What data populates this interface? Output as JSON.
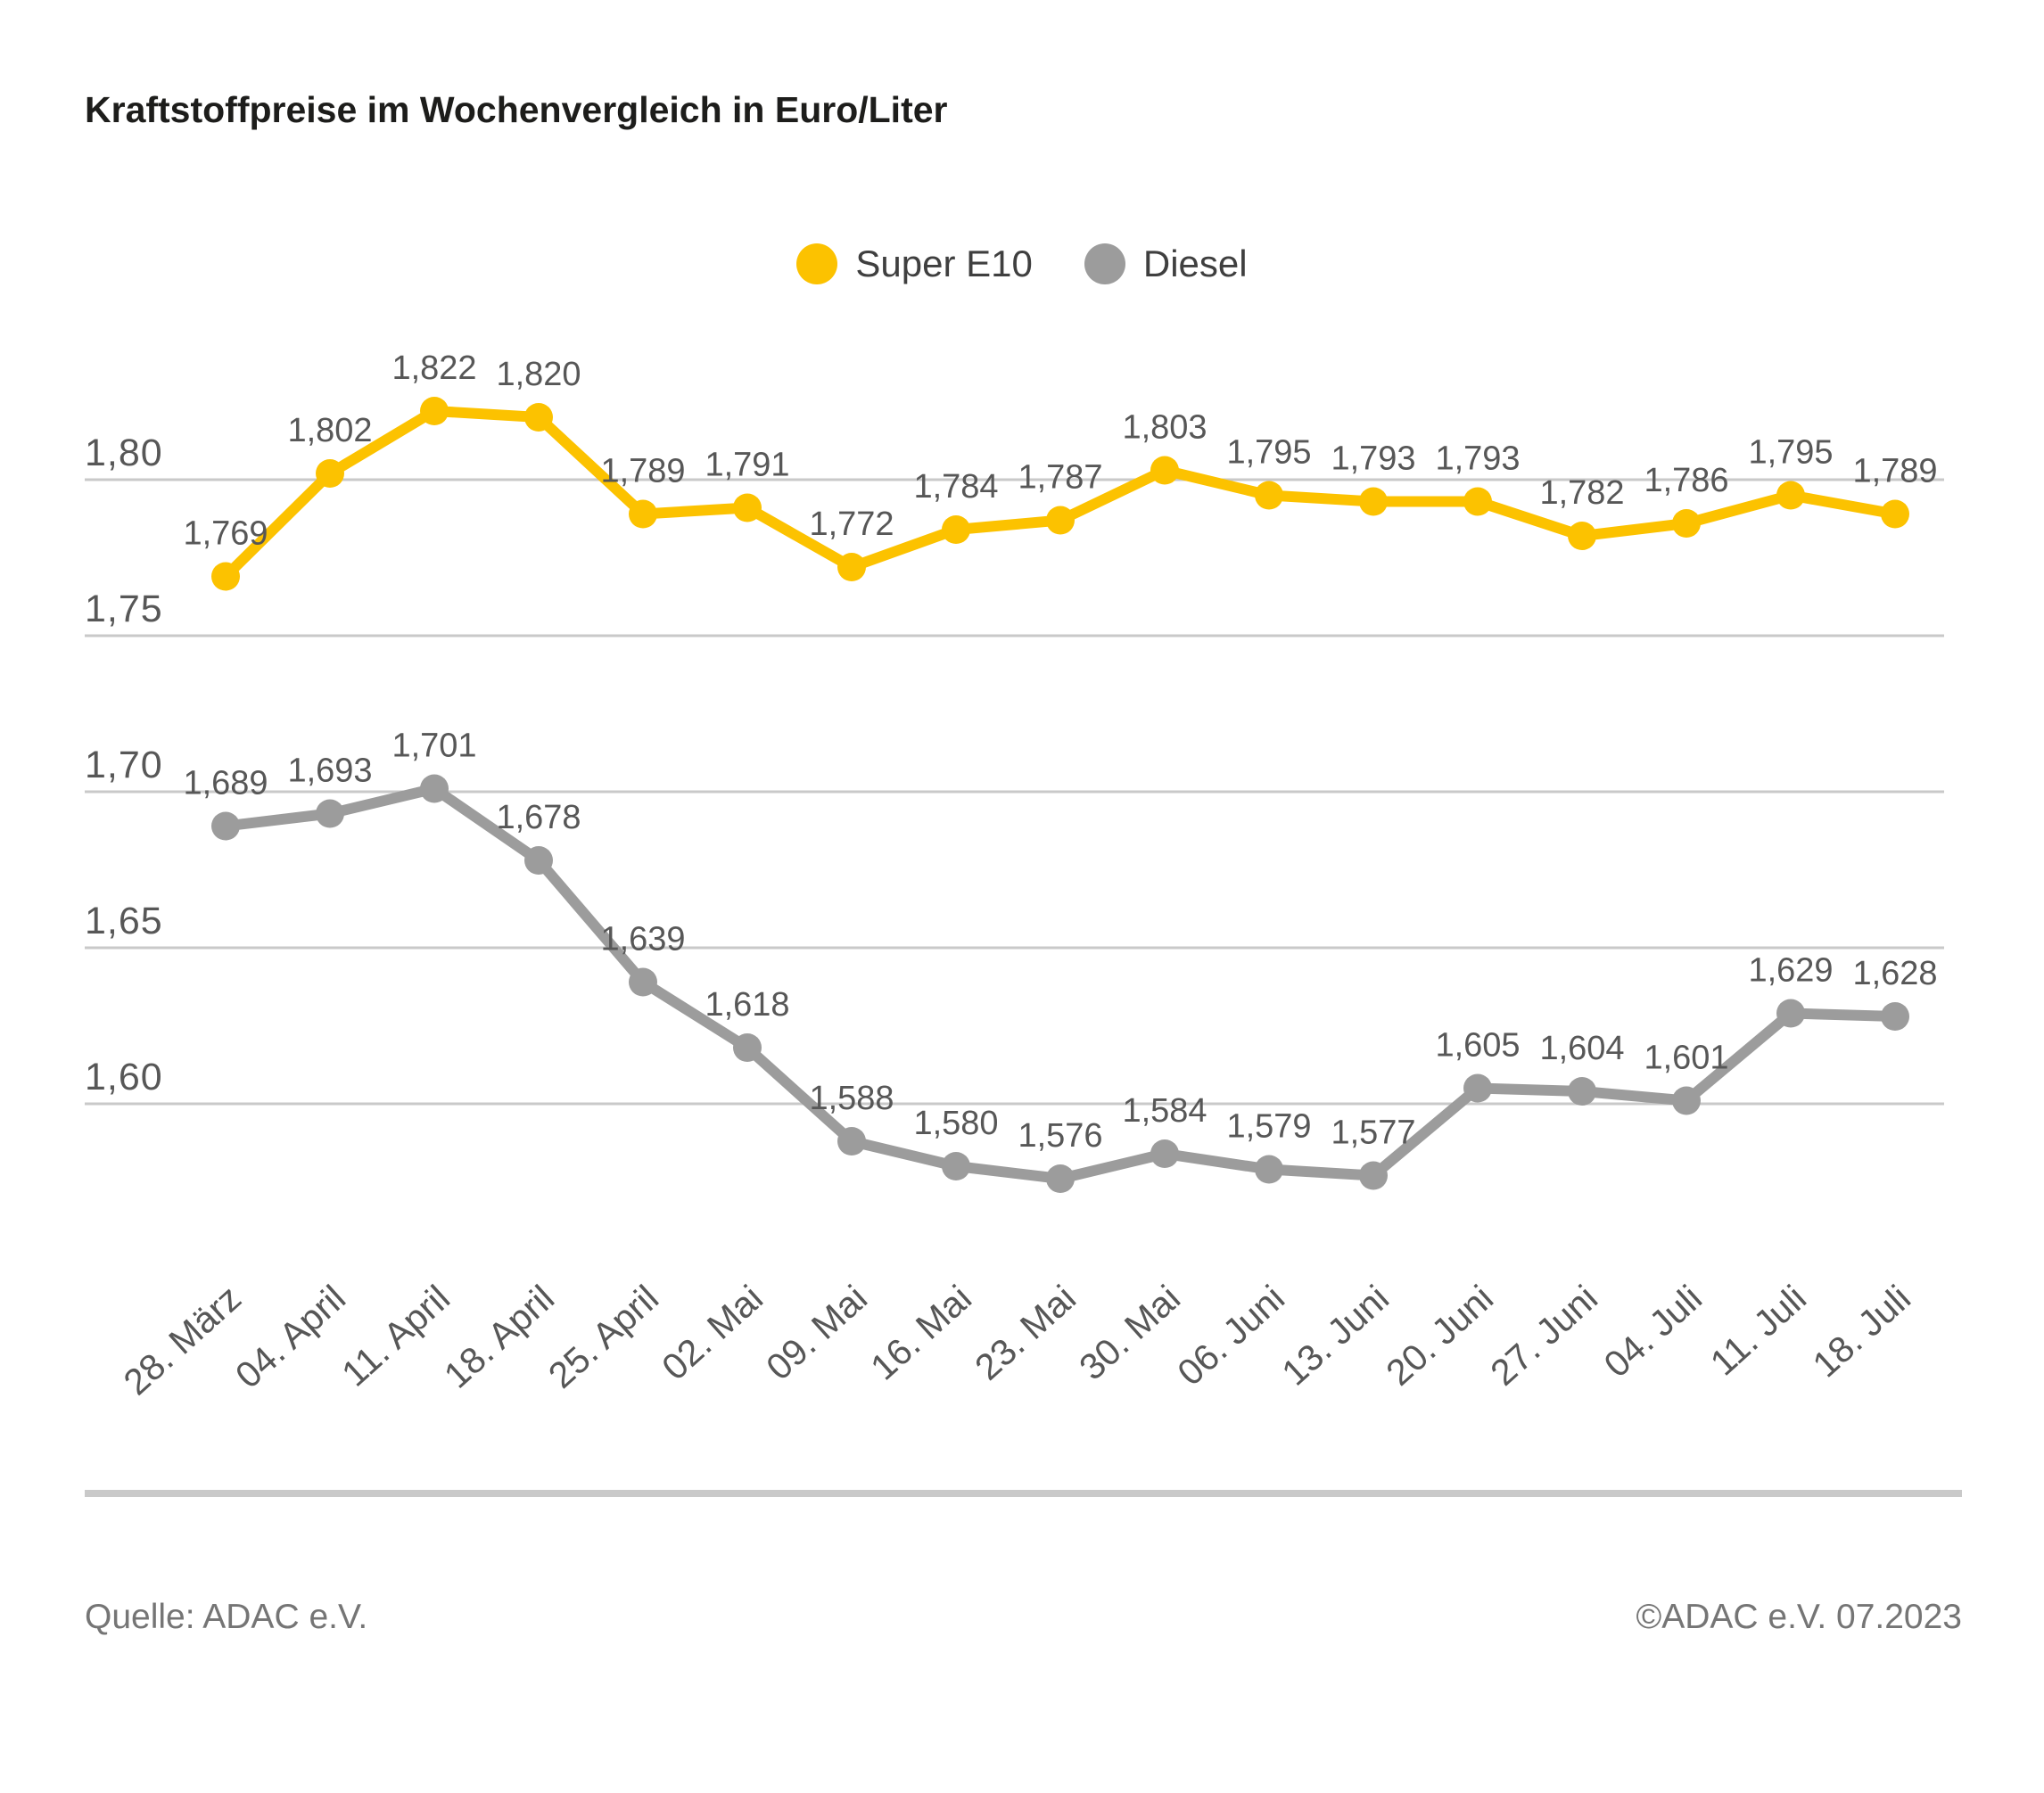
{
  "title": "Kraftstoffpreise im Wochenvergleich in Euro/Liter",
  "footer": {
    "source": "Quelle: ADAC e.V.",
    "copyright": "©ADAC e.V. 07.2023"
  },
  "colors": {
    "super_e10": "#fcc200",
    "diesel": "#9c9c9c",
    "grid": "#c9c9c9",
    "value_label": "#575757",
    "axis_label": "#575757",
    "title": "#1d1d1b",
    "footer": "#757575"
  },
  "chart_data": {
    "type": "line",
    "title": "Kraftstoffpreise im Wochenvergleich in Euro/Liter",
    "xlabel": "",
    "ylabel": "Euro/Liter",
    "categories": [
      "28. März",
      "04. April",
      "11. April",
      "18. April",
      "25. April",
      "02. Mai",
      "09. Mai",
      "16. Mai",
      "23. Mai",
      "30. Mai",
      "06. Juni",
      "13. Juni",
      "20. Juni",
      "27. Juni",
      "04. Juli",
      "11. Juli",
      "18. Juli"
    ],
    "series": [
      {
        "name": "Super E10",
        "color": "#fcc200",
        "values": [
          1.769,
          1.802,
          1.822,
          1.82,
          1.789,
          1.791,
          1.772,
          1.784,
          1.787,
          1.803,
          1.795,
          1.793,
          1.793,
          1.782,
          1.786,
          1.795,
          1.789
        ]
      },
      {
        "name": "Diesel",
        "color": "#9c9c9c",
        "values": [
          1.689,
          1.693,
          1.701,
          1.678,
          1.639,
          1.618,
          1.588,
          1.58,
          1.576,
          1.584,
          1.579,
          1.577,
          1.605,
          1.604,
          1.601,
          1.629,
          1.628
        ]
      }
    ],
    "yticks": [
      1.8,
      1.75,
      1.7,
      1.65,
      1.6
    ],
    "ylim": [
      1.565,
      1.835
    ],
    "grid": true,
    "value_labels": true,
    "value_decimals": 3,
    "ytick_decimals": 2,
    "decimal_separator": ",",
    "legend_position": "top-center"
  }
}
